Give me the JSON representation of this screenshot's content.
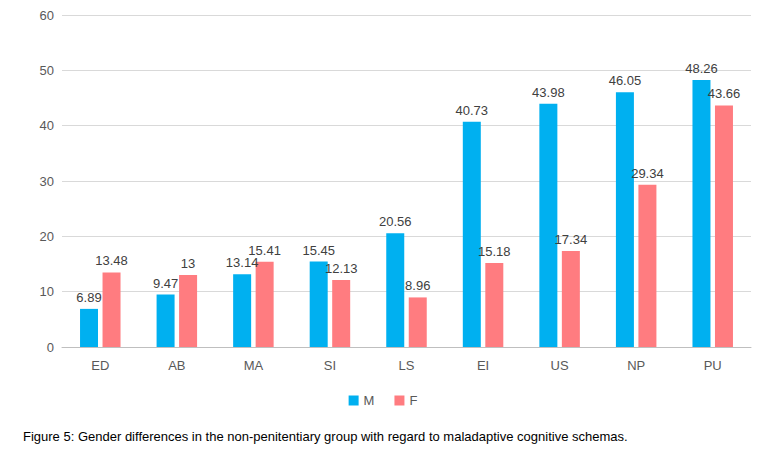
{
  "chart_data": {
    "type": "bar",
    "title": "Figure 5: Gender differences in the non-penitentiary group with regard to maladaptive cognitive schemas.",
    "categories": [
      "ED",
      "AB",
      "MA",
      "SI",
      "LS",
      "EI",
      "US",
      "NP",
      "PU"
    ],
    "series": [
      {
        "name": "M",
        "color": "#00b0f0",
        "values": [
          6.89,
          9.47,
          13.14,
          15.45,
          20.56,
          40.73,
          43.98,
          46.05,
          48.26
        ]
      },
      {
        "name": "F",
        "color": "#ff7c80",
        "values": [
          13.48,
          13,
          15.41,
          12.13,
          8.96,
          15.18,
          17.34,
          29.34,
          43.66
        ]
      }
    ],
    "ylim": [
      0,
      60
    ],
    "yticks": [
      0,
      10,
      20,
      30,
      40,
      50,
      60
    ],
    "grid": true,
    "legend": "bottom",
    "data_labels": true
  }
}
